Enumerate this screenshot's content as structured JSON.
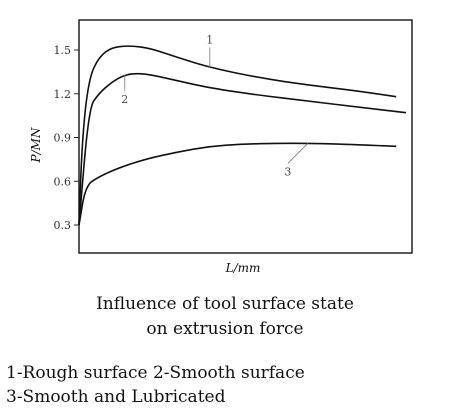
{
  "chart_data": {
    "type": "line",
    "xlabel": "L/mm",
    "ylabel": "P/MN",
    "ylim": [
      0.3,
      1.6
    ],
    "y_ticks": [
      "0.3",
      "0.6",
      "0.9",
      "1.2",
      "1.5"
    ],
    "x_range": [
      0,
      100
    ],
    "grid": false,
    "series": [
      {
        "name": "1",
        "x": [
          0,
          1,
          3,
          6,
          10,
          16,
          22,
          30,
          40,
          55,
          70,
          85,
          97
        ],
        "values": [
          0.3,
          0.9,
          1.3,
          1.45,
          1.52,
          1.53,
          1.51,
          1.45,
          1.38,
          1.31,
          1.26,
          1.22,
          1.18
        ]
      },
      {
        "name": "2",
        "x": [
          0,
          3,
          6,
          10,
          14,
          18,
          22,
          30,
          40,
          55,
          70,
          85,
          100
        ],
        "values": [
          0.3,
          1.1,
          1.2,
          1.28,
          1.33,
          1.34,
          1.33,
          1.29,
          1.24,
          1.19,
          1.15,
          1.11,
          1.07
        ]
      },
      {
        "name": "3",
        "x": [
          0,
          2,
          6,
          12,
          20,
          30,
          40,
          50,
          60,
          70,
          80,
          97
        ],
        "values": [
          0.3,
          0.57,
          0.63,
          0.69,
          0.75,
          0.8,
          0.84,
          0.855,
          0.86,
          0.86,
          0.855,
          0.84
        ]
      }
    ]
  },
  "caption": {
    "line1": "Influence of tool surface state",
    "line2": "on extrusion force"
  },
  "legend": {
    "line1": "1-Rough surface   2-Smooth surface",
    "line2": "3-Smooth and Lubricated"
  }
}
